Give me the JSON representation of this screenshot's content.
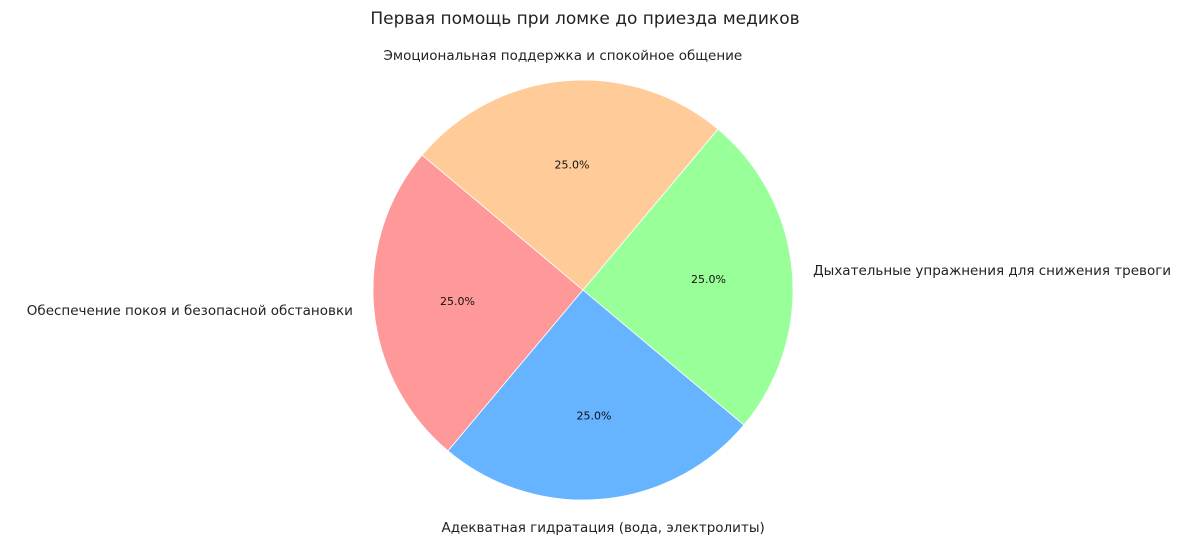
{
  "chart_data": {
    "type": "pie",
    "title": "Первая помощь при ломке до приезда медиков",
    "categories": [
      "Обеспечение покоя и безопасной обстановки",
      "Адекватная гидратация (вода, электролиты)",
      "Дыхательные упражнения для снижения тревоги",
      "Эмоциональная поддержка и спокойное общение"
    ],
    "values": [
      25.0,
      25.0,
      25.0,
      25.0
    ],
    "value_labels": [
      "25.0%",
      "25.0%",
      "25.0%",
      "25.0%"
    ],
    "colors": [
      "#ff9999",
      "#66b3ff",
      "#99ff99",
      "#ffcc99"
    ],
    "start_angle_deg": 140,
    "direction": "counterclockwise"
  }
}
